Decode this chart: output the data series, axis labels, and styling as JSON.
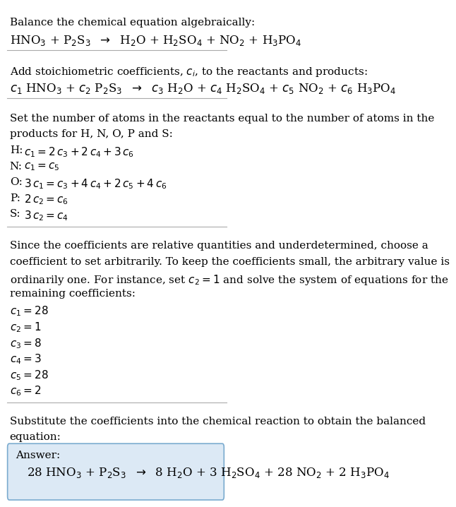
{
  "bg_color": "#ffffff",
  "text_color": "#000000",
  "font_size": 11,
  "box_color": "#dce9f5",
  "box_border": "#7aabcf",
  "line_color": "#aaaaaa",
  "title_line": "Balance the chemical equation algebraically:",
  "eq1": "HNO$_3$ + P$_2$S$_3$  $\\rightarrow$  H$_2$O + H$_2$SO$_4$ + NO$_2$ + H$_3$PO$_4$",
  "section2_header": "Add stoichiometric coefficients, $c_i$, to the reactants and products:",
  "eq2": "$c_1$ HNO$_3$ + $c_2$ P$_2$S$_3$  $\\rightarrow$  $c_3$ H$_2$O + $c_4$ H$_2$SO$_4$ + $c_5$ NO$_2$ + $c_6$ H$_3$PO$_4$",
  "section3_line1": "Set the number of atoms in the reactants equal to the number of atoms in the",
  "section3_line2": "products for H, N, O, P and S:",
  "atom_labels": [
    "H:",
    "N:",
    "O:",
    "P:",
    "S:"
  ],
  "atom_eqs": [
    "$c_1 = 2\\,c_3 + 2\\,c_4 + 3\\,c_6$",
    "$c_1 = c_5$",
    "$3\\,c_1 = c_3 + 4\\,c_4 + 2\\,c_5 + 4\\,c_6$",
    "$2\\,c_2 = c_6$",
    "$3\\,c_2 = c_4$"
  ],
  "section4_lines": [
    "Since the coefficients are relative quantities and underdetermined, choose a",
    "coefficient to set arbitrarily. To keep the coefficients small, the arbitrary value is",
    "ordinarily one. For instance, set $c_2 = 1$ and solve the system of equations for the",
    "remaining coefficients:"
  ],
  "coeff_lines": [
    "$c_1 = 28$",
    "$c_2 = 1$",
    "$c_3 = 8$",
    "$c_4 = 3$",
    "$c_5 = 28$",
    "$c_6 = 2$"
  ],
  "section5_line1": "Substitute the coefficients into the chemical reaction to obtain the balanced",
  "section5_line2": "equation:",
  "answer_label": "Answer:",
  "answer_eq": "28 HNO$_3$ + P$_2$S$_3$  $\\rightarrow$  8 H$_2$O + 3 H$_2$SO$_4$ + 28 NO$_2$ + 2 H$_3$PO$_4$"
}
